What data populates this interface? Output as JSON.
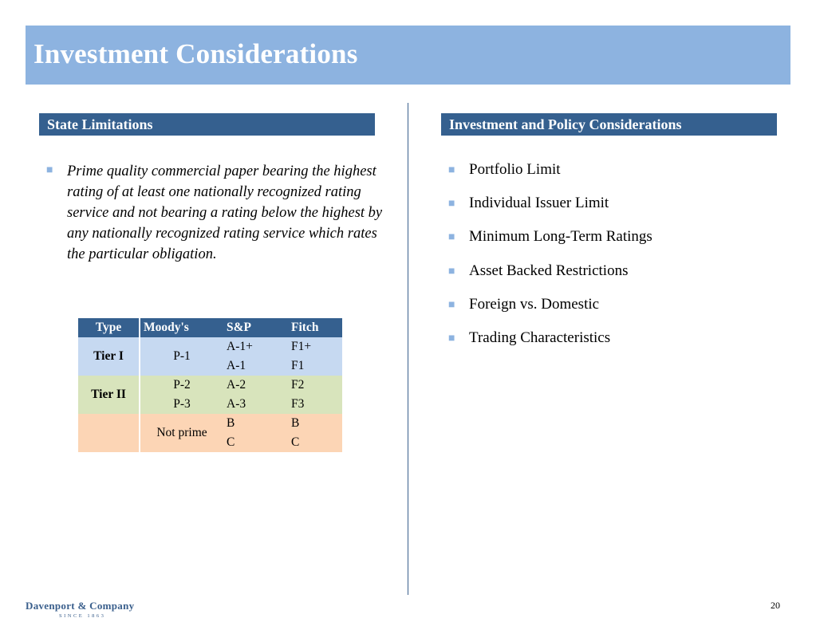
{
  "slide": {
    "title": "Investment Considerations",
    "page_number": "20"
  },
  "left_panel": {
    "header": "State Limitations",
    "bullet": "Prime quality commercial paper bearing the highest rating of at least one nationally recognized rating service and not bearing a rating below the highest by any nationally recognized rating service which rates the particular obligation."
  },
  "ratings_table": {
    "headers": [
      "Type",
      "Moody's",
      "S&P",
      "Fitch"
    ],
    "groups": [
      {
        "type": "Tier I",
        "moodys": "P-1",
        "rows": [
          {
            "sp": "A-1+",
            "fitch": "F1+"
          },
          {
            "sp": "A-1",
            "fitch": "F1"
          }
        ]
      },
      {
        "type": "Tier II",
        "moodys_rows": [
          "P-2",
          "P-3"
        ],
        "rows": [
          {
            "sp": "A-2",
            "fitch": "F2"
          },
          {
            "sp": "A-3",
            "fitch": "F3"
          }
        ]
      },
      {
        "type": "",
        "moodys": "Not prime",
        "rows": [
          {
            "sp": "B",
            "fitch": "B"
          },
          {
            "sp": "C",
            "fitch": "C"
          }
        ]
      }
    ]
  },
  "right_panel": {
    "header": "Investment and Policy Considerations",
    "items": [
      "Portfolio Limit",
      "Individual Issuer Limit",
      "Minimum Long-Term Ratings",
      "Asset Backed Restrictions",
      "Foreign vs. Domestic",
      "Trading Characteristics"
    ]
  },
  "footer": {
    "logo_name": "Davenport & Company",
    "logo_tagline": "SINCE 1863"
  },
  "colors": {
    "title_bar": "#8db3e0",
    "section_header": "#35608f",
    "bullet": "#8db3e0",
    "tier1": "#c6d9f1",
    "tier2": "#d8e4bc",
    "not_prime": "#fcd5b5"
  }
}
